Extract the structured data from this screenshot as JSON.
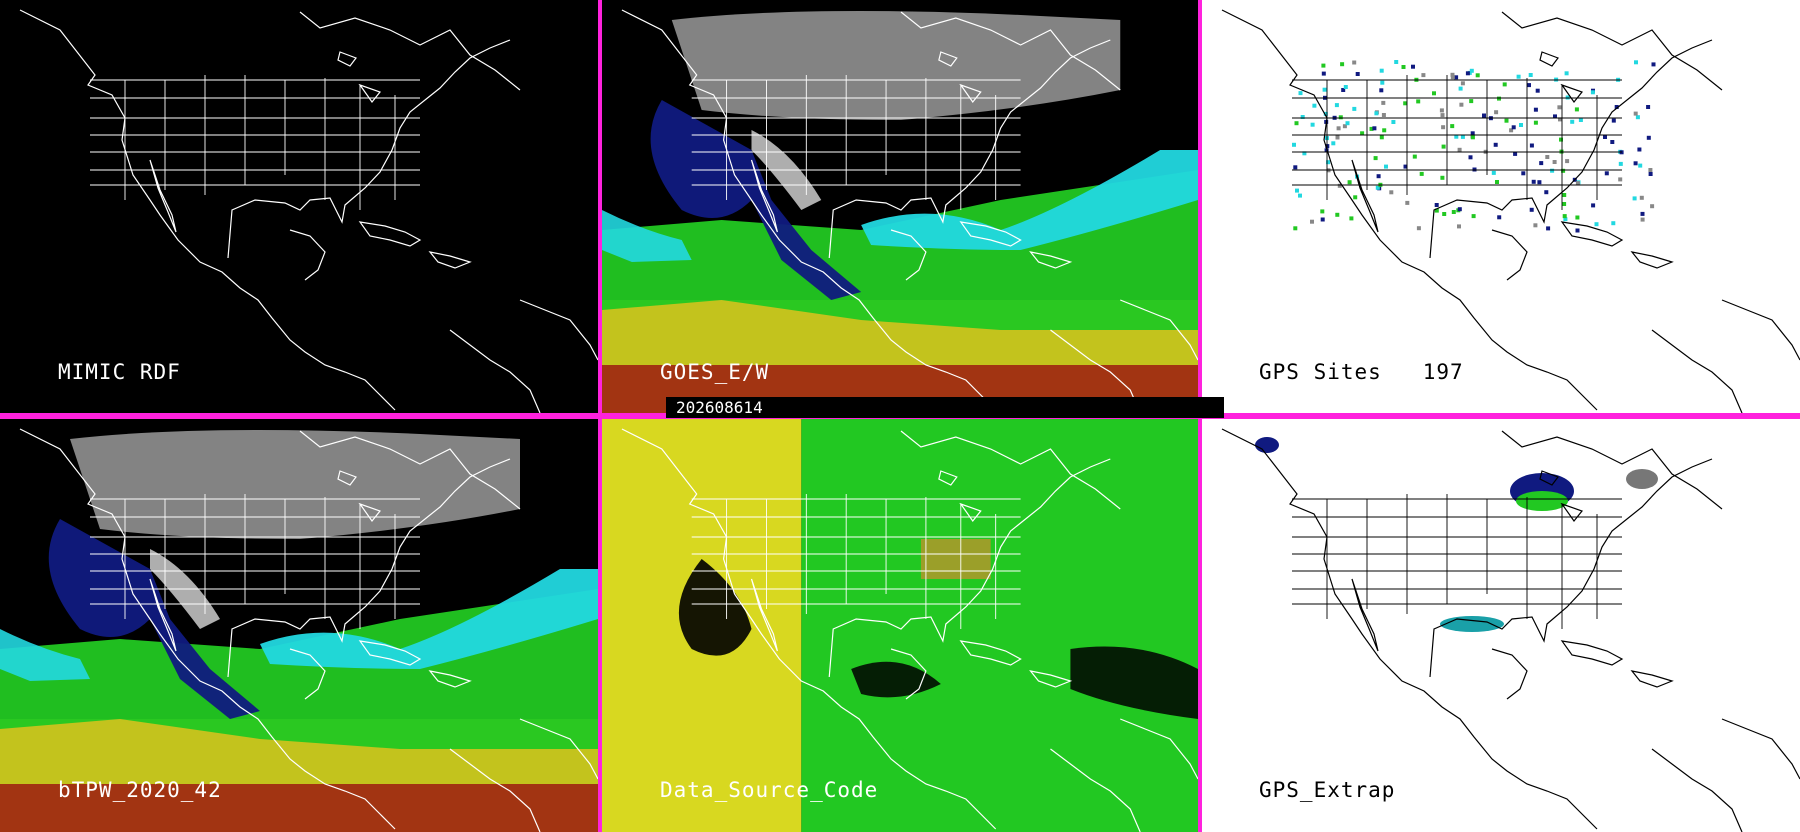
{
  "panels": {
    "p1": {
      "label": "MIMIC RDF"
    },
    "p2": {
      "label": "GOES_E/W"
    },
    "p3": {
      "label": "GPS Sites   197"
    },
    "p4": {
      "label": "bTPW_2020_42"
    },
    "p5": {
      "label": "Data_Source_Code"
    },
    "p6": {
      "label": "GPS_Extrap"
    }
  },
  "timestamp": "202608614",
  "colors": {
    "divider": "#ff22dd",
    "land_bg_dark": "#000000",
    "land_bg_light": "#ffffff",
    "coast_dark": "#ffffff",
    "coast_light": "#000000",
    "tpw_gray": "#9a9a9a",
    "tpw_navy": "#101a80",
    "tpw_cyan": "#22d8e0",
    "tpw_green": "#22c822",
    "tpw_yellow": "#d8d820",
    "tpw_red": "#9a1010"
  }
}
